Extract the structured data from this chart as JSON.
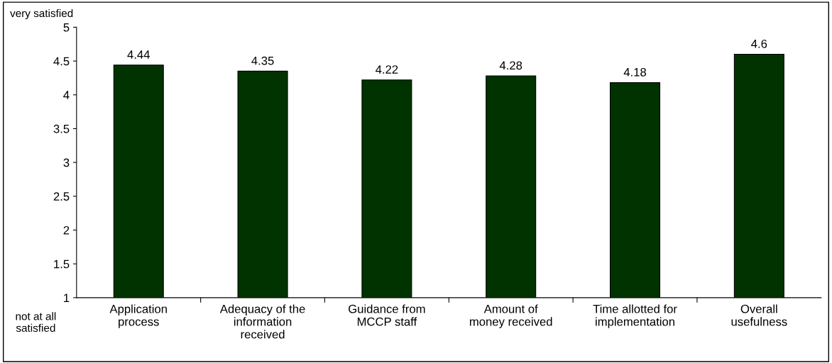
{
  "chart_data": {
    "type": "bar",
    "categories": [
      "Application\nprocess",
      "Adequacy of the\ninformation\nreceived",
      "Guidance from\nMCCP staff",
      "Amount of\nmoney received",
      "Time allotted for\nimplementation",
      "Overall\nusefulness"
    ],
    "values": [
      4.44,
      4.35,
      4.22,
      4.28,
      4.18,
      4.6
    ],
    "color": "#003300",
    "ylim": [
      1,
      5
    ],
    "yticks": [
      1,
      1.5,
      2,
      2.5,
      3,
      3.5,
      4,
      4.5,
      5
    ],
    "data_labels": true,
    "grid": false,
    "legend": false,
    "annotations": [
      "very satisfied",
      "not at all\nsatisfied"
    ]
  }
}
